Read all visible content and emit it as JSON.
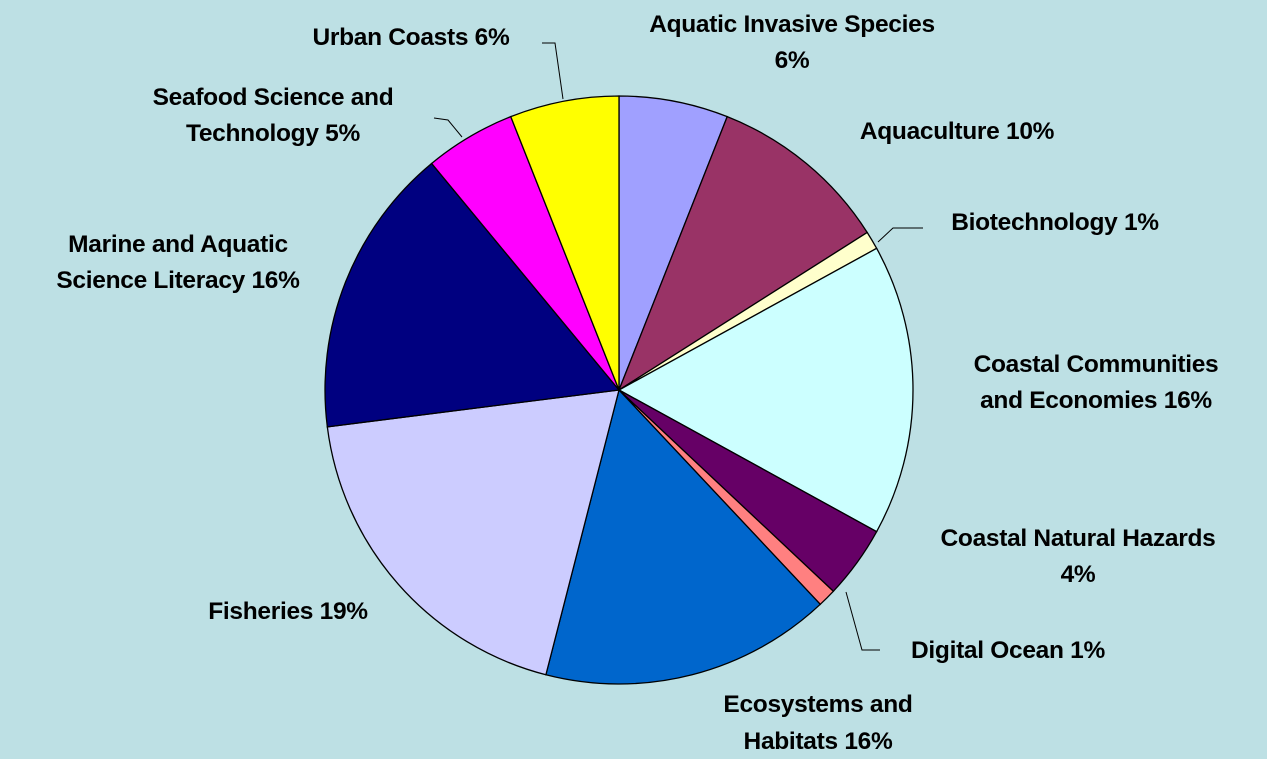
{
  "chart_data": {
    "type": "pie",
    "start_angle_deg": 90,
    "direction": "clockwise",
    "slices": [
      {
        "category": "Aquatic Invasive Species",
        "value": 6,
        "label": "6%",
        "color": "#a0a0ff"
      },
      {
        "category": "Aquaculture",
        "value": 10,
        "label": "10%",
        "color": "#993366"
      },
      {
        "category": "Biotechnology",
        "value": 1,
        "label": "1%",
        "color": "#ffffcc"
      },
      {
        "category": "Coastal Communities and Economies",
        "value": 16,
        "label": "16%",
        "color": "#ccffff"
      },
      {
        "category": "Coastal Natural Hazards",
        "value": 4,
        "label": "4%",
        "color": "#660066"
      },
      {
        "category": "Digital Ocean",
        "value": 1,
        "label": "1%",
        "color": "#ff8080"
      },
      {
        "category": "Ecosystems and Habitats",
        "value": 16,
        "label": "16%",
        "color": "#0066cc"
      },
      {
        "category": "Fisheries",
        "value": 19,
        "label": "19%",
        "color": "#ccccff"
      },
      {
        "category": "Marine and Aquatic Science Literacy",
        "value": 16,
        "label": "16%",
        "color": "#000080"
      },
      {
        "category": "Seafood Science and Technology",
        "value": 5,
        "label": "5%",
        "color": "#ff00ff"
      },
      {
        "category": "Urban Coasts",
        "value": 6,
        "label": "6%",
        "color": "#ffff00"
      }
    ]
  },
  "labels": [
    {
      "lines": [
        "Aquatic Invasive Species",
        "6%"
      ]
    },
    {
      "lines": [
        "Aquaculture 10%"
      ]
    },
    {
      "lines": [
        "Biotechnology 1%"
      ]
    },
    {
      "lines": [
        "Coastal Communities",
        "and Economies 16%"
      ]
    },
    {
      "lines": [
        "Coastal Natural Hazards",
        "4%"
      ]
    },
    {
      "lines": [
        "Digital Ocean 1%"
      ]
    },
    {
      "lines": [
        "Ecosystems and",
        "Habitats 16%"
      ]
    },
    {
      "lines": [
        "Fisheries 19%"
      ]
    },
    {
      "lines": [
        "Marine and Aquatic",
        "Science Literacy 16%"
      ]
    },
    {
      "lines": [
        "Seafood Science and",
        "Technology 5%"
      ]
    },
    {
      "lines": [
        "Urban Coasts 6%"
      ]
    }
  ],
  "background_color": "#bde0e4"
}
